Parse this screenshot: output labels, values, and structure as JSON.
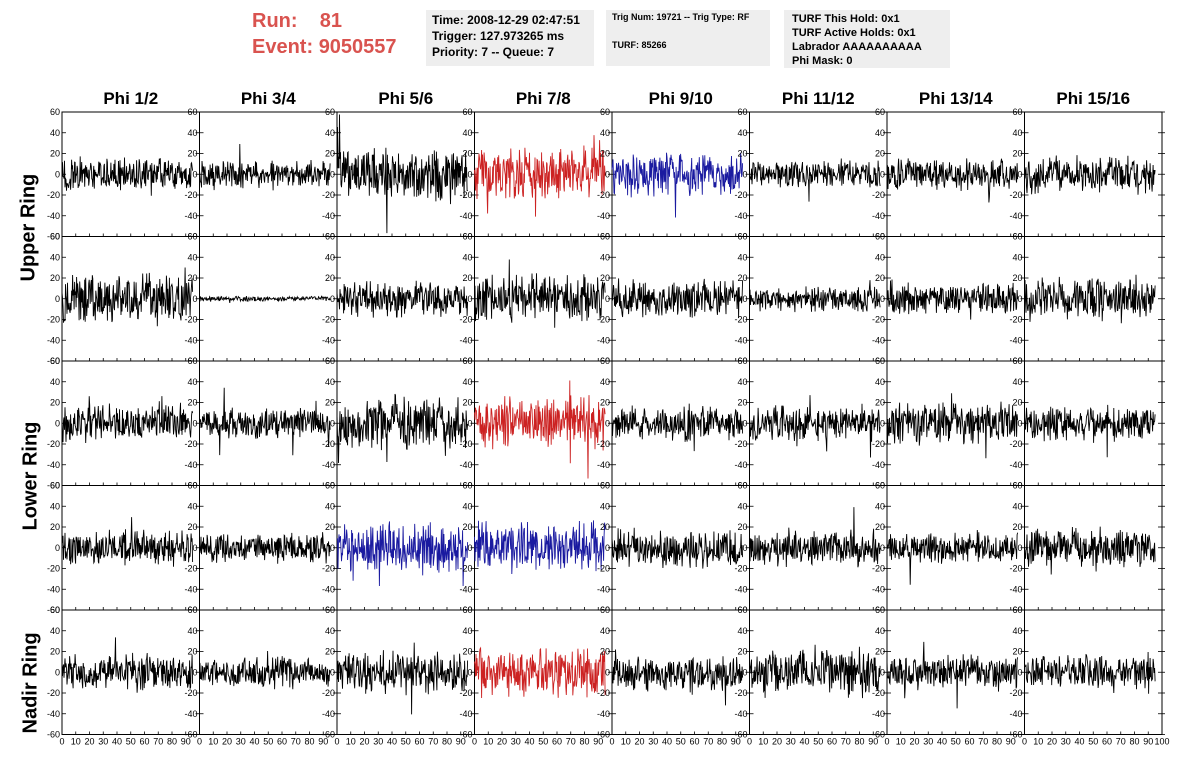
{
  "header": {
    "run_label": "Run:",
    "run_value": "81",
    "event_label": "Event:",
    "event_value": "9050557"
  },
  "info_time": {
    "time": "Time: 2008-12-29 02:47:51",
    "trigger": "Trigger: 127.973265 ms",
    "priority": "Priority: 7 -- Queue: 7"
  },
  "info_trig": {
    "trig": "Trig Num: 19721 -- Trig Type: RF",
    "turf": "TURF: 85266"
  },
  "info_turf": {
    "this_hold": "TURF This Hold: 0x1",
    "active_holds": "TURF Active Holds: 0x1",
    "labrador": "Labrador AAAAAAAAAA",
    "phi_mask": "Phi Mask: 0"
  },
  "colors": {
    "red": "#cc2222",
    "blue": "#1a1aa0",
    "black": "#000000",
    "title": "#d9534f"
  },
  "chart_data": {
    "type": "line",
    "columns": [
      "Phi 1/2",
      "Phi 3/4",
      "Phi 5/6",
      "Phi 7/8",
      "Phi 9/10",
      "Phi 11/12",
      "Phi 13/14",
      "Phi 15/16"
    ],
    "ring_labels": [
      "Upper Ring",
      "Lower Ring",
      "Nadir Ring"
    ],
    "xlim": [
      0,
      100
    ],
    "ylim": [
      -60,
      60
    ],
    "x_ticks": [
      "0",
      "10",
      "20",
      "30",
      "40",
      "50",
      "60",
      "70",
      "80",
      "90",
      "100"
    ],
    "y_ticks": [
      "60",
      "40",
      "20",
      "0",
      "-20",
      "-40",
      "-60"
    ],
    "rows": 5,
    "panel_amplitudes": [
      [
        13,
        11,
        20,
        20,
        18,
        11,
        13,
        15
      ],
      [
        20,
        2,
        14,
        18,
        16,
        10,
        12,
        18
      ],
      [
        14,
        12,
        20,
        20,
        14,
        14,
        16,
        14
      ],
      [
        14,
        12,
        20,
        20,
        15,
        14,
        12,
        16
      ],
      [
        14,
        12,
        16,
        20,
        14,
        18,
        14,
        13
      ]
    ],
    "panel_colors": [
      [
        "black",
        "black",
        "black",
        "red",
        "blue",
        "black",
        "black",
        "black"
      ],
      [
        "black",
        "black",
        "black",
        "black",
        "black",
        "black",
        "black",
        "black"
      ],
      [
        "black",
        "black",
        "black",
        "red",
        "black",
        "black",
        "black",
        "black"
      ],
      [
        "black",
        "black",
        "blue",
        "blue",
        "black",
        "black",
        "black",
        "black"
      ],
      [
        "black",
        "black",
        "black",
        "red",
        "black",
        "black",
        "black",
        "black"
      ]
    ]
  }
}
